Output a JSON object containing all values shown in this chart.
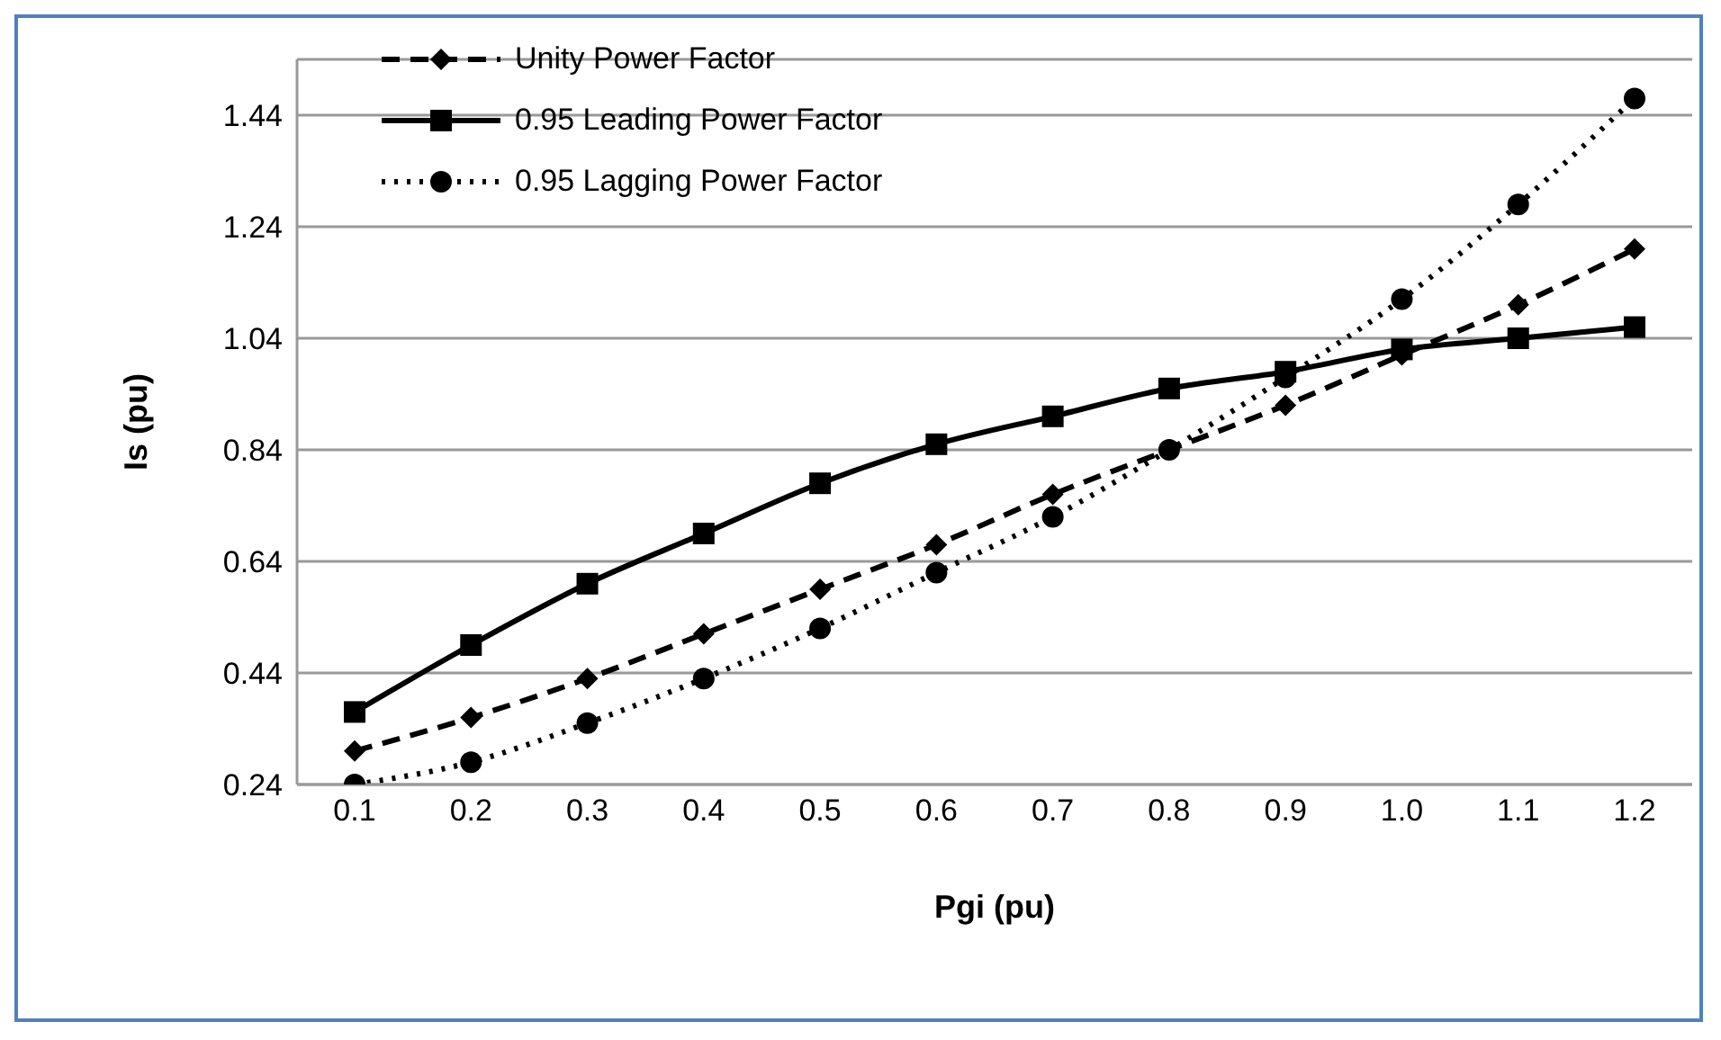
{
  "chart_data": {
    "type": "line",
    "xlabel": "Pgi (pu)",
    "ylabel": "Is (pu)",
    "categories": [
      "0.1",
      "0.2",
      "0.3",
      "0.4",
      "0.5",
      "0.6",
      "0.7",
      "0.8",
      "0.9",
      "1.0",
      "1.1",
      "1.2"
    ],
    "series": [
      {
        "name": "Unity Power Factor",
        "color": "#000000",
        "marker": "diamond",
        "line_style": "dashed",
        "values": [
          0.3,
          0.36,
          0.43,
          0.51,
          0.59,
          0.67,
          0.76,
          0.84,
          0.92,
          1.01,
          1.1,
          1.2
        ]
      },
      {
        "name": "0.95 Leading Power Factor",
        "color": "#000000",
        "marker": "square",
        "line_style": "solid",
        "values": [
          0.37,
          0.49,
          0.6,
          0.69,
          0.78,
          0.85,
          0.9,
          0.95,
          0.98,
          1.02,
          1.04,
          1.06
        ]
      },
      {
        "name": "0.95 Lagging Power Factor",
        "color": "#000000",
        "marker": "circle",
        "line_style": "dotted",
        "values": [
          0.24,
          0.28,
          0.35,
          0.43,
          0.52,
          0.62,
          0.72,
          0.84,
          0.97,
          1.11,
          1.28,
          1.47
        ]
      }
    ],
    "ylim": [
      0.24,
      1.54
    ],
    "yticks": [
      0.24,
      0.44,
      0.64,
      0.84,
      1.04,
      1.24,
      1.44
    ],
    "grid": "y",
    "legend": "top left"
  }
}
